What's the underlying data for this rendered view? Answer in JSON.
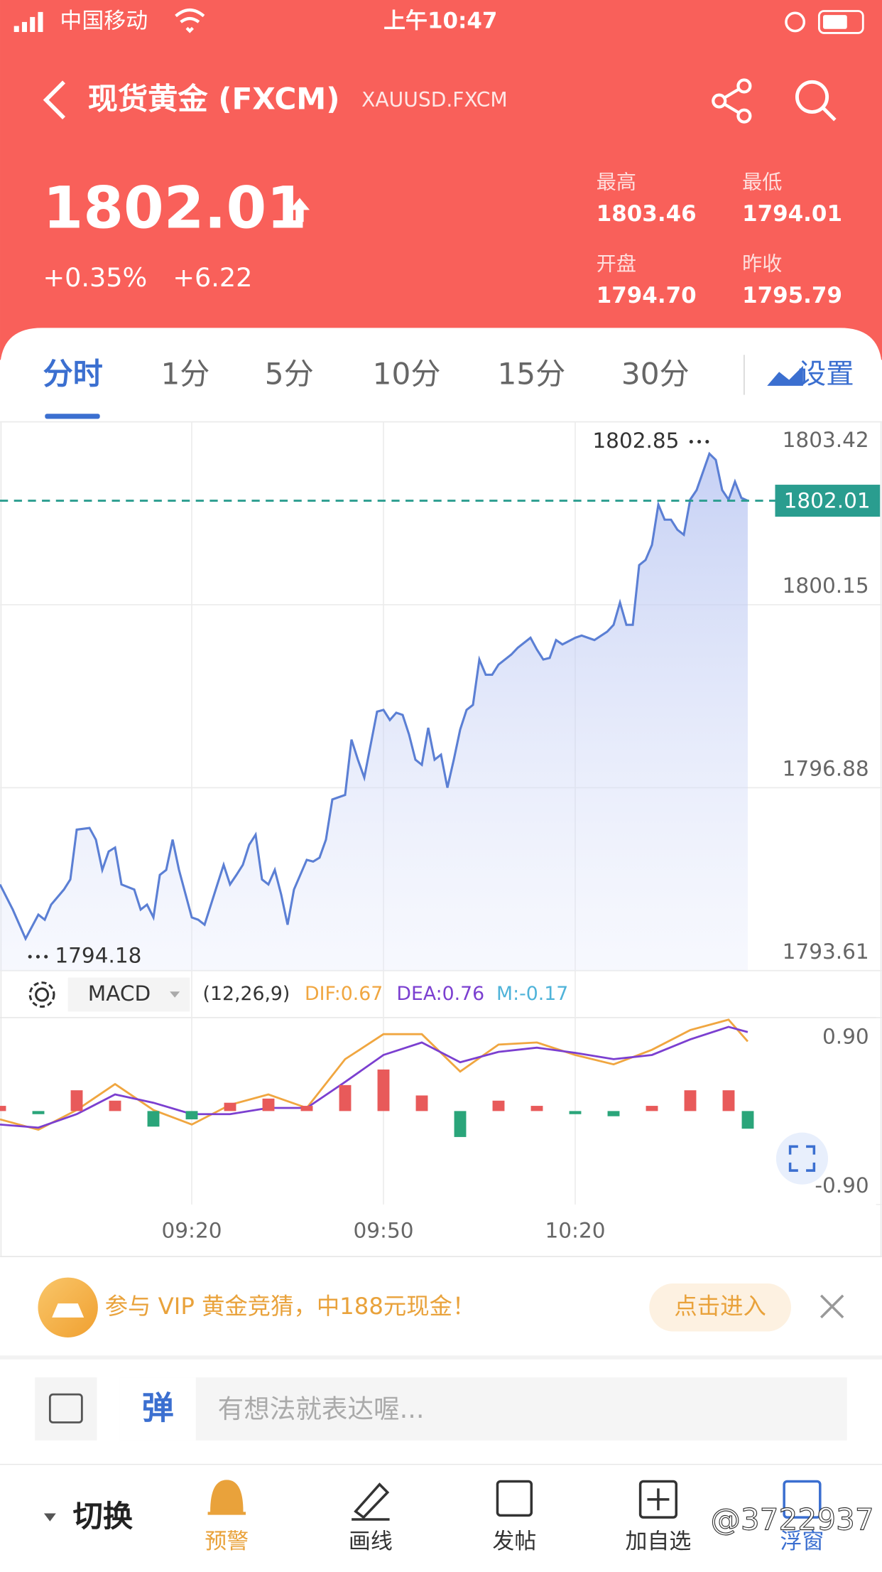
{
  "status_bar": {
    "carrier": "中国移动",
    "time": "上午10:47"
  },
  "header": {
    "title": "现货黄金 (FXCM)",
    "symbol": "XAUUSD.FXCM"
  },
  "quote": {
    "price": "1802.01",
    "change_pct": "+0.35%",
    "change": "+6.22",
    "stats": [
      {
        "label": "最高",
        "value": "1803.46"
      },
      {
        "label": "最低",
        "value": "1794.01"
      },
      {
        "label": "开盘",
        "value": "1794.70"
      },
      {
        "label": "昨收",
        "value": "1795.79"
      }
    ]
  },
  "tabs": [
    "分时",
    "1分",
    "5分",
    "10分",
    "15分",
    "30分"
  ],
  "settings": "设置",
  "chart_data": [
    {
      "type": "line",
      "color": "#5b7fd4",
      "area": true,
      "grid": true,
      "x": [
        "08:50",
        "08:52",
        "08:54",
        "08:56",
        "08:57",
        "08:58",
        "09:00",
        "09:01",
        "09:02",
        "09:04",
        "09:05",
        "09:06",
        "09:07",
        "09:08",
        "09:09",
        "09:11",
        "09:12",
        "09:13",
        "09:14",
        "09:15",
        "09:16",
        "09:17",
        "09:18",
        "09:20",
        "09:21",
        "09:22",
        "09:24",
        "09:25",
        "09:26",
        "09:27",
        "09:28",
        "09:29",
        "09:30",
        "09:31",
        "09:32",
        "09:33",
        "09:34",
        "09:35",
        "09:36",
        "09:38",
        "09:39",
        "09:40",
        "09:41",
        "09:42",
        "09:44",
        "09:45",
        "09:46",
        "09:47",
        "09:48",
        "09:49",
        "09:50",
        "09:51",
        "09:52",
        "09:53",
        "09:54",
        "09:55",
        "09:56",
        "09:57",
        "09:58",
        "09:59",
        "10:00",
        "10:01",
        "10:02",
        "10:03",
        "10:04",
        "10:05",
        "10:06",
        "10:07",
        "10:08",
        "10:10",
        "10:11",
        "10:13",
        "10:14",
        "10:15",
        "10:16",
        "10:17",
        "10:18",
        "10:20",
        "10:21",
        "10:23",
        "10:25",
        "10:26",
        "10:27",
        "10:28",
        "10:29",
        "10:30",
        "10:31",
        "10:32",
        "10:33",
        "10:34",
        "10:35",
        "10:36",
        "10:37",
        "10:38",
        "10:39",
        "10:41",
        "10:42",
        "10:43",
        "10:44",
        "10:45",
        "10:46",
        "10:47"
      ],
      "values": [
        1795.15,
        1794.7,
        1794.18,
        1794.61,
        1794.52,
        1794.79,
        1795.06,
        1795.24,
        1796.13,
        1796.16,
        1795.95,
        1795.41,
        1795.74,
        1795.81,
        1795.15,
        1795.06,
        1794.7,
        1794.79,
        1794.56,
        1795.32,
        1795.41,
        1795.95,
        1795.41,
        1794.56,
        1794.52,
        1794.43,
        1795.15,
        1795.5,
        1795.15,
        1795.32,
        1795.5,
        1795.86,
        1796.04,
        1795.24,
        1795.15,
        1795.41,
        1794.97,
        1794.43,
        1795.06,
        1795.59,
        1795.56,
        1795.63,
        1795.95,
        1796.67,
        1796.75,
        1797.74,
        1797.38,
        1797.06,
        1797.65,
        1798.24,
        1798.27,
        1798.09,
        1798.22,
        1798.18,
        1797.83,
        1797.38,
        1797.29,
        1797.95,
        1797.38,
        1797.47,
        1796.88,
        1797.38,
        1797.92,
        1798.27,
        1798.36,
        1799.17,
        1798.9,
        1798.9,
        1799.08,
        1799.26,
        1799.38,
        1799.56,
        1799.35,
        1799.17,
        1799.2,
        1799.52,
        1799.44,
        1799.56,
        1799.6,
        1799.52,
        1799.67,
        1799.79,
        1800.19,
        1799.79,
        1799.79,
        1800.86,
        1800.95,
        1801.22,
        1801.94,
        1801.67,
        1801.67,
        1801.49,
        1801.4,
        1802.03,
        1802.2,
        1802.85,
        1802.74,
        1802.2,
        1802.03,
        1802.35,
        1802.06,
        1802.01
      ],
      "xlim": [
        "08:50",
        "11:08"
      ],
      "xticks": [
        "09:20",
        "09:50",
        "10:20"
      ],
      "ylim": [
        1793.61,
        1803.42
      ],
      "yticks": [
        1793.61,
        1796.88,
        1800.15,
        1803.42
      ],
      "reference_line": {
        "value": 1802.01,
        "color": "#2a9d8f"
      },
      "high": 1802.85,
      "low": 1794.18
    },
    {
      "type": "macd",
      "indicator": "MACD",
      "params": "(12,26,9)",
      "x": [
        "08:50",
        "08:56",
        "09:02",
        "09:08",
        "09:14",
        "09:20",
        "09:26",
        "09:32",
        "09:38",
        "09:44",
        "09:50",
        "09:56",
        "10:02",
        "10:08",
        "10:14",
        "10:20",
        "10:26",
        "10:32",
        "10:38",
        "10:44",
        "10:47"
      ],
      "series": [
        {
          "color": "#f0a640",
          "values": [
            -0.08,
            -0.18,
            0.01,
            0.26,
            0.01,
            -0.13,
            0.06,
            0.16,
            0.03,
            0.5,
            0.74,
            0.74,
            0.38,
            0.64,
            0.66,
            0.54,
            0.45,
            0.59,
            0.78,
            0.88,
            0.67
          ]
        },
        {
          "color": "#7b3fd0",
          "values": [
            -0.13,
            -0.16,
            -0.03,
            0.16,
            0.08,
            -0.03,
            -0.03,
            0.03,
            0.03,
            0.28,
            0.54,
            0.66,
            0.47,
            0.57,
            0.61,
            0.56,
            0.5,
            0.54,
            0.69,
            0.81,
            0.76
          ]
        },
        {
          "type": "bar",
          "color": "#4fb3d9",
          "up_color": "#e85a5a",
          "down_color": "#2aa57a",
          "values": [
            0.05,
            -0.03,
            0.2,
            0.1,
            -0.15,
            -0.08,
            0.08,
            0.12,
            0.05,
            0.25,
            0.4,
            0.15,
            -0.25,
            0.1,
            0.05,
            -0.03,
            -0.05,
            0.05,
            0.2,
            0.2,
            -0.17
          ]
        }
      ],
      "legend": [
        "DIF:0.67",
        "DEA:0.76",
        "M:-0.17"
      ],
      "xlim": [
        "08:50",
        "11:08"
      ],
      "ylim": [
        -0.9,
        0.9
      ],
      "yticks": [
        {
          "value": 0.9,
          "label": "0.90"
        },
        {
          "value": -0.9,
          "label": "-0.90"
        }
      ]
    }
  ],
  "banner": {
    "text": "参与 VIP 黄金竞猜，中188元现金！",
    "button": "点击进入"
  },
  "comment": {
    "icon_text": "弹",
    "placeholder": "有想法就表达喔..."
  },
  "toolbar": {
    "switch": "切换",
    "items": [
      "预警",
      "画线",
      "发帖",
      "加自选",
      "浮窗"
    ]
  },
  "watermark": "@3722937"
}
